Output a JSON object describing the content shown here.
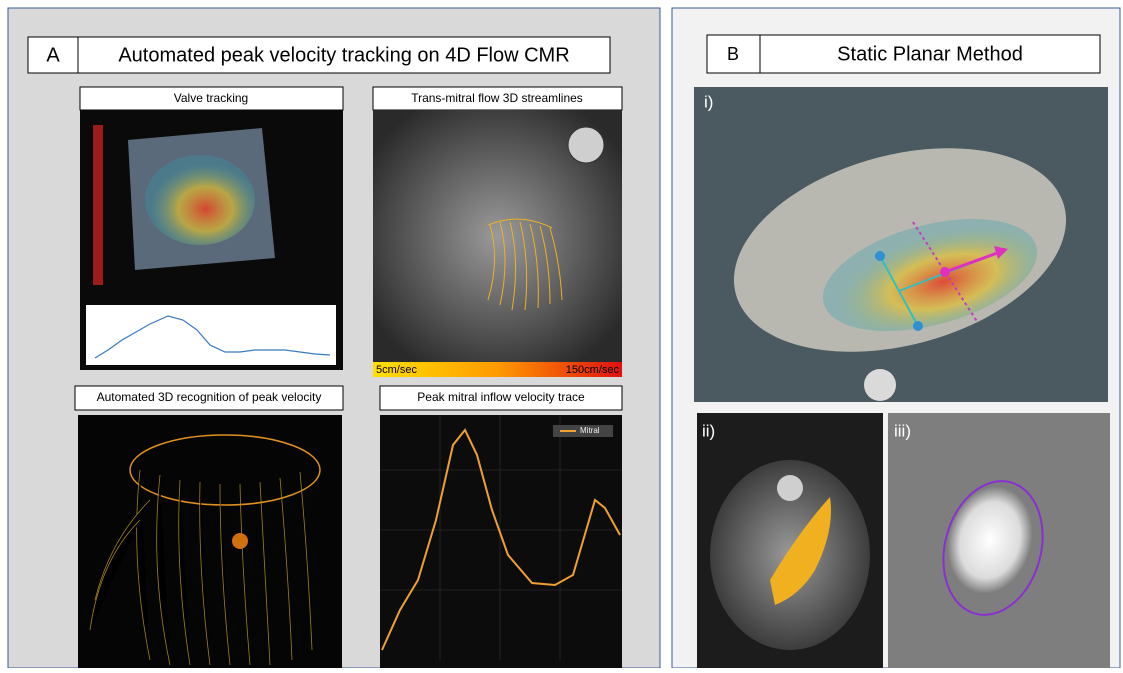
{
  "panel_a": {
    "label": "A",
    "title": "Automated peak velocity tracking on 4D Flow CMR",
    "images": [
      {
        "caption": "Valve tracking"
      },
      {
        "caption": "Trans-mitral flow 3D streamlines",
        "scale_min": "5cm/sec",
        "scale_max": "150cm/sec"
      },
      {
        "caption": "Automated 3D recognition of peak velocity"
      },
      {
        "caption": "Peak mitral inflow velocity trace",
        "legend": "Mitral"
      }
    ]
  },
  "panel_b": {
    "label": "B",
    "title": "Static Planar Method",
    "images": [
      {
        "label": "i)"
      },
      {
        "label": "ii)"
      },
      {
        "label": "iii)"
      }
    ]
  }
}
